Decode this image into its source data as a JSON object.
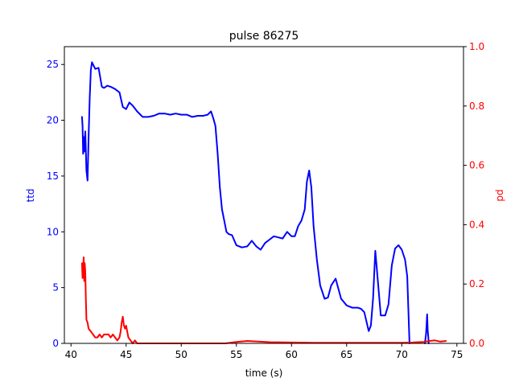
{
  "chart_data": {
    "type": "line",
    "title": "pulse 86275",
    "xlabel": "time (s)",
    "xlim": [
      39.4,
      75.6
    ],
    "x_ticks": [
      40,
      45,
      50,
      55,
      60,
      65,
      70,
      75
    ],
    "left_axis": {
      "label": "ttd",
      "color": "#0000ff",
      "ylim": [
        0,
        26.6
      ],
      "ticks": [
        0,
        5,
        10,
        15,
        20,
        25
      ]
    },
    "right_axis": {
      "label": "pd",
      "color": "#ff0000",
      "ylim": [
        0,
        1.0
      ],
      "ticks": [
        "0.0",
        "0.2",
        "0.4",
        "0.6",
        "0.8",
        "1.0"
      ]
    },
    "series": [
      {
        "axis": "left",
        "color": "#0000ff",
        "x": [
          41.0,
          41.05,
          41.1,
          41.15,
          41.2,
          41.3,
          41.4,
          41.5,
          41.6,
          41.7,
          41.8,
          41.9,
          42.0,
          42.2,
          42.5,
          42.8,
          43.0,
          43.3,
          43.6,
          44.0,
          44.4,
          44.7,
          45.0,
          45.3,
          45.6,
          46.0,
          46.5,
          47.0,
          47.5,
          48.0,
          48.5,
          49.0,
          49.5,
          50.0,
          50.5,
          51.0,
          51.5,
          52.0,
          52.4,
          52.7,
          52.9,
          53.1,
          53.3,
          53.5,
          53.7,
          53.9,
          54.1,
          54.3,
          54.6,
          55.0,
          55.5,
          56.0,
          56.4,
          56.8,
          57.2,
          57.6,
          58.0,
          58.4,
          58.8,
          59.2,
          59.6,
          60.0,
          60.3,
          60.6,
          60.9,
          61.2,
          61.4,
          61.6,
          61.8,
          62.0,
          62.3,
          62.6,
          63.0,
          63.3,
          63.6,
          64.0,
          64.5,
          65.0,
          65.5,
          66.0,
          66.3,
          66.6,
          67.0,
          67.2,
          67.4,
          67.6,
          67.8,
          68.1,
          68.5,
          68.8,
          69.1,
          69.4,
          69.7,
          70.0,
          70.3,
          70.5,
          70.6,
          70.7
        ],
        "y": [
          20.3,
          19.5,
          17.0,
          18.5,
          17.2,
          19.0,
          15.5,
          14.6,
          18.5,
          22.0,
          24.5,
          25.2,
          25.0,
          24.6,
          24.7,
          23.0,
          22.9,
          23.1,
          23.0,
          22.8,
          22.5,
          21.2,
          21.0,
          21.6,
          21.3,
          20.8,
          20.3,
          20.3,
          20.4,
          20.6,
          20.6,
          20.5,
          20.6,
          20.5,
          20.5,
          20.3,
          20.4,
          20.4,
          20.5,
          20.8,
          20.2,
          19.5,
          17.0,
          14.0,
          12.0,
          11.0,
          10.0,
          9.8,
          9.7,
          8.8,
          8.6,
          8.7,
          9.2,
          8.7,
          8.4,
          9.0,
          9.3,
          9.6,
          9.5,
          9.4,
          10.0,
          9.6,
          9.6,
          10.5,
          11.0,
          12.0,
          14.5,
          15.5,
          14.0,
          10.5,
          7.5,
          5.2,
          4.0,
          4.1,
          5.2,
          5.8,
          4.0,
          3.4,
          3.2,
          3.2,
          3.1,
          2.8,
          1.1,
          1.6,
          4.0,
          8.3,
          6.0,
          2.5,
          2.5,
          3.5,
          7.0,
          8.5,
          8.8,
          8.4,
          7.5,
          6.0,
          3.0,
          0.0
        ]
      },
      {
        "axis": "left",
        "color": "#0000ff",
        "x": [
          72.1,
          72.2,
          72.25,
          72.3,
          72.35,
          72.4,
          72.45
        ],
        "y": [
          0.0,
          0.8,
          1.6,
          2.6,
          1.2,
          0.6,
          0.0
        ]
      },
      {
        "axis": "right",
        "color": "#ff0000",
        "x": [
          41.0,
          41.05,
          41.1,
          41.15,
          41.2,
          41.25,
          41.3,
          41.35,
          41.4,
          41.5,
          41.6,
          41.8,
          42.0,
          42.2,
          42.4,
          42.6,
          42.8,
          43.0,
          43.2,
          43.4,
          43.6,
          43.8,
          44.0,
          44.2,
          44.4,
          44.5,
          44.6,
          44.7,
          44.8,
          44.9,
          45.0,
          45.1,
          45.2,
          45.4,
          45.6,
          45.8,
          46.0,
          46.5,
          47.0,
          48.0,
          50.0,
          52.0,
          54.0,
          55.0,
          56.0,
          57.0,
          58.0,
          60.0,
          62.0,
          64.0,
          66.0,
          68.0,
          70.0,
          71.0,
          71.5,
          72.0,
          72.5,
          73.0,
          73.5,
          74.0
        ],
        "y": [
          0.27,
          0.22,
          0.25,
          0.29,
          0.21,
          0.27,
          0.24,
          0.15,
          0.08,
          0.07,
          0.05,
          0.04,
          0.03,
          0.02,
          0.02,
          0.03,
          0.02,
          0.03,
          0.03,
          0.03,
          0.02,
          0.03,
          0.02,
          0.01,
          0.02,
          0.04,
          0.07,
          0.09,
          0.06,
          0.05,
          0.06,
          0.04,
          0.02,
          0.01,
          0.0,
          0.01,
          0.0,
          0.0,
          0.0,
          0.0,
          0.0,
          0.0,
          0.0,
          0.005,
          0.008,
          0.006,
          0.004,
          0.003,
          0.002,
          0.002,
          0.002,
          0.002,
          0.002,
          0.003,
          0.004,
          0.005,
          0.008,
          0.01,
          0.006,
          0.008
        ]
      }
    ]
  }
}
